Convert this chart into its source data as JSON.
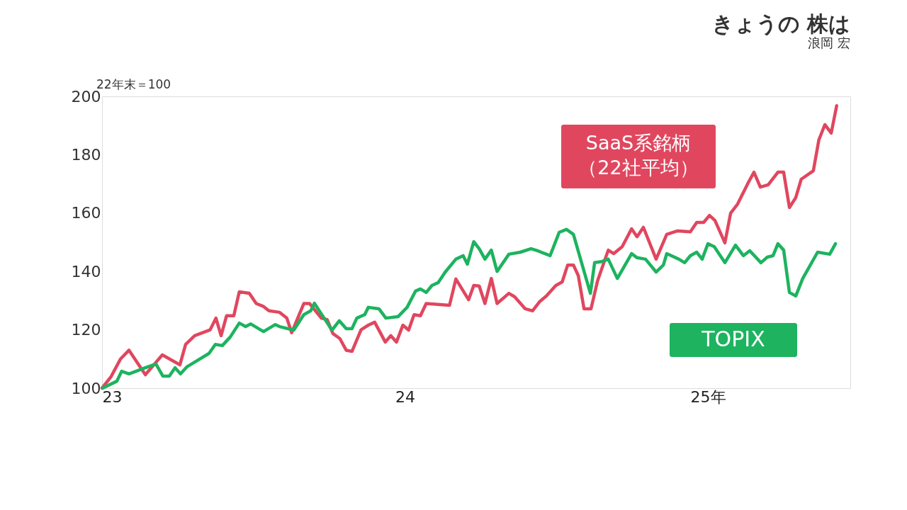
{
  "chart_data": {
    "type": "line",
    "title": "きょうの 株は",
    "subtitle": "浪岡 宏",
    "ylabel": "22年末＝100",
    "xlim": [
      23,
      25.47
    ],
    "xticks": [
      23,
      24,
      {
        "value": 25,
        "label": "25年"
      }
    ],
    "ylim": [
      100,
      200
    ],
    "yticks": [
      100,
      120,
      140,
      160,
      180,
      200
    ],
    "grid": false,
    "legend": false,
    "marker": "none",
    "line_style": "solid",
    "series": [
      {
        "name": "SaaS系銘柄（22社平均）",
        "color": "#e0475f",
        "x": [
          23.0,
          23.03,
          23.061,
          23.089,
          23.143,
          23.199,
          23.257,
          23.276,
          23.306,
          23.357,
          23.376,
          23.393,
          23.411,
          23.435,
          23.453,
          23.486,
          23.509,
          23.533,
          23.551,
          23.586,
          23.61,
          23.626,
          23.666,
          23.685,
          23.724,
          23.743,
          23.762,
          23.785,
          23.806,
          23.825,
          23.855,
          23.879,
          23.9,
          23.935,
          23.953,
          23.972,
          23.993,
          24.012,
          24.03,
          24.051,
          24.07,
          24.147,
          24.168,
          24.21,
          24.227,
          24.245,
          24.264,
          24.285,
          24.304,
          24.343,
          24.362,
          24.397,
          24.421,
          24.444,
          24.467,
          24.498,
          24.519,
          24.537,
          24.556,
          24.572,
          24.591,
          24.614,
          24.636,
          24.671,
          24.689,
          24.717,
          24.748,
          24.766,
          24.787,
          24.829,
          24.864,
          24.9,
          24.942,
          24.963,
          24.986,
          25.005,
          25.023,
          25.056,
          25.075,
          25.098,
          25.133,
          25.152,
          25.173,
          25.199,
          25.231,
          25.25,
          25.269,
          25.29,
          25.308,
          25.348,
          25.366,
          25.386,
          25.407,
          25.425
        ],
        "values": [
          100,
          104,
          110,
          113,
          104.6,
          111.4,
          108,
          115,
          118,
          120,
          124,
          118,
          124.8,
          124.8,
          133,
          132.5,
          129,
          128,
          126.5,
          126,
          124,
          119,
          129,
          129,
          124,
          123.5,
          118.7,
          117,
          113,
          112.6,
          120,
          121.6,
          122.6,
          115.8,
          118,
          115.8,
          121.6,
          119.9,
          125.2,
          124.8,
          129,
          128.4,
          137.4,
          130.3,
          135.2,
          135,
          129,
          137.6,
          129,
          132.5,
          131.3,
          127.2,
          126.5,
          129.6,
          131.6,
          135.2,
          136.4,
          142.2,
          142.2,
          138.6,
          127.2,
          127.2,
          136.9,
          147.3,
          146.1,
          148.5,
          154.6,
          151.9,
          155.1,
          144.2,
          152.7,
          153.9,
          153.6,
          156.8,
          156.8,
          159.2,
          157.5,
          149.8,
          160,
          163.1,
          170.4,
          174,
          168.9,
          169.7,
          174,
          174,
          161.9,
          165.3,
          171.6,
          174.5,
          185,
          190.3,
          187.4,
          196.8
        ]
      },
      {
        "name": "TOPIX",
        "color": "#1db35f",
        "x": [
          23.002,
          23.049,
          23.065,
          23.089,
          23.143,
          23.178,
          23.201,
          23.222,
          23.241,
          23.259,
          23.28,
          23.353,
          23.374,
          23.397,
          23.423,
          23.453,
          23.474,
          23.491,
          23.533,
          23.572,
          23.586,
          23.633,
          23.666,
          23.689,
          23.701,
          23.759,
          23.783,
          23.806,
          23.825,
          23.841,
          23.867,
          23.879,
          23.914,
          23.937,
          23.977,
          24.007,
          24.035,
          24.051,
          24.07,
          24.089,
          24.11,
          24.133,
          24.168,
          24.192,
          24.206,
          24.227,
          24.245,
          24.264,
          24.285,
          24.304,
          24.343,
          24.381,
          24.416,
          24.437,
          24.479,
          24.509,
          24.533,
          24.556,
          24.612,
          24.626,
          24.65,
          24.671,
          24.701,
          24.748,
          24.766,
          24.794,
          24.829,
          24.853,
          24.864,
          24.904,
          24.923,
          24.942,
          24.963,
          24.981,
          25.0,
          25.021,
          25.056,
          25.091,
          25.117,
          25.138,
          25.175,
          25.196,
          25.215,
          25.231,
          25.25,
          25.269,
          25.29,
          25.313,
          25.362,
          25.402,
          25.421
        ],
        "values": [
          100,
          102.4,
          105.8,
          104.9,
          107,
          108.3,
          104.1,
          104.1,
          107,
          104.9,
          107.3,
          111.9,
          115,
          114.6,
          117.5,
          122.3,
          121.1,
          122,
          119.4,
          121.8,
          121.1,
          119.9,
          125.2,
          126.5,
          129.1,
          119.9,
          123.1,
          120.4,
          120.4,
          124,
          125.2,
          127.7,
          127.2,
          124,
          124.5,
          127.7,
          133.3,
          134,
          132.8,
          135.2,
          136.2,
          139.8,
          144.2,
          145.4,
          142.5,
          150.2,
          147.8,
          144.2,
          147.3,
          140,
          145.9,
          146.6,
          147.8,
          147.1,
          145.4,
          153.4,
          154.4,
          152.7,
          132.5,
          143,
          143.4,
          144.2,
          137.6,
          146.1,
          144.7,
          144.2,
          139.8,
          142.2,
          146.1,
          144.2,
          143,
          145.4,
          146.6,
          144.2,
          149.5,
          148.5,
          143,
          149,
          145.4,
          147.1,
          143,
          144.9,
          145.4,
          149.5,
          147.3,
          132.8,
          131.6,
          137.6,
          146.6,
          145.9,
          149.5
        ]
      }
    ]
  }
}
